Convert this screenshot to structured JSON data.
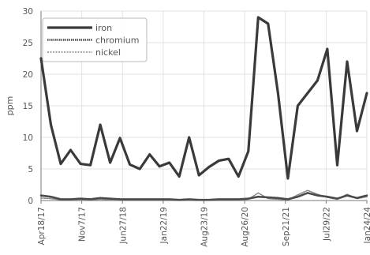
{
  "chart_data": {
    "type": "line",
    "ylabel": "ppm",
    "xlabel": "",
    "ylim": [
      0,
      30
    ],
    "yticks": [
      0,
      5,
      10,
      15,
      20,
      25,
      30
    ],
    "xtick_labels": [
      "Apr18/17",
      "Nov7/17",
      "Jun27/18",
      "Jan22/19",
      "Aug23/19",
      "Aug26/20",
      "Sep21/21",
      "Jul29/22",
      "Jan24/24"
    ],
    "grid": true,
    "legend_position": "top-left",
    "series": [
      {
        "name": "iron",
        "color": "#3a3a3a",
        "values": [
          22.5,
          12,
          5.8,
          8,
          5.8,
          5.6,
          12,
          6,
          9.9,
          5.7,
          5,
          7.3,
          5.4,
          6,
          3.8,
          10,
          4,
          5.3,
          6.3,
          6.6,
          3.8,
          7.8,
          29,
          28,
          17,
          3.5,
          15,
          17,
          19,
          24,
          5.6,
          22,
          11,
          17
        ]
      },
      {
        "name": "chromium",
        "color": "#4a4a4a",
        "values": [
          0.8,
          0.6,
          0.2,
          0.2,
          0.3,
          0.2,
          0.4,
          0.3,
          0.2,
          0.2,
          0.2,
          0.2,
          0.2,
          0.2,
          0.1,
          0.2,
          0.1,
          0.1,
          0.2,
          0.2,
          0.2,
          0.3,
          0.6,
          0.5,
          0.4,
          0.2,
          0.6,
          1.2,
          0.8,
          0.6,
          0.3,
          0.8,
          0.4,
          0.8
        ]
      },
      {
        "name": "nickel",
        "color": "#8a8a8a",
        "values": [
          0.4,
          0.3,
          0.1,
          0.1,
          0.1,
          0.1,
          0.2,
          0.1,
          0.1,
          0.1,
          0.1,
          0.1,
          0.1,
          0.1,
          0.1,
          0.1,
          0.1,
          0.1,
          0.1,
          0.1,
          0.1,
          0.2,
          1.2,
          0.3,
          0.2,
          0.1,
          0.9,
          1.6,
          1.0,
          0.5,
          0.2,
          1.0,
          0.3,
          0.6
        ]
      }
    ]
  }
}
